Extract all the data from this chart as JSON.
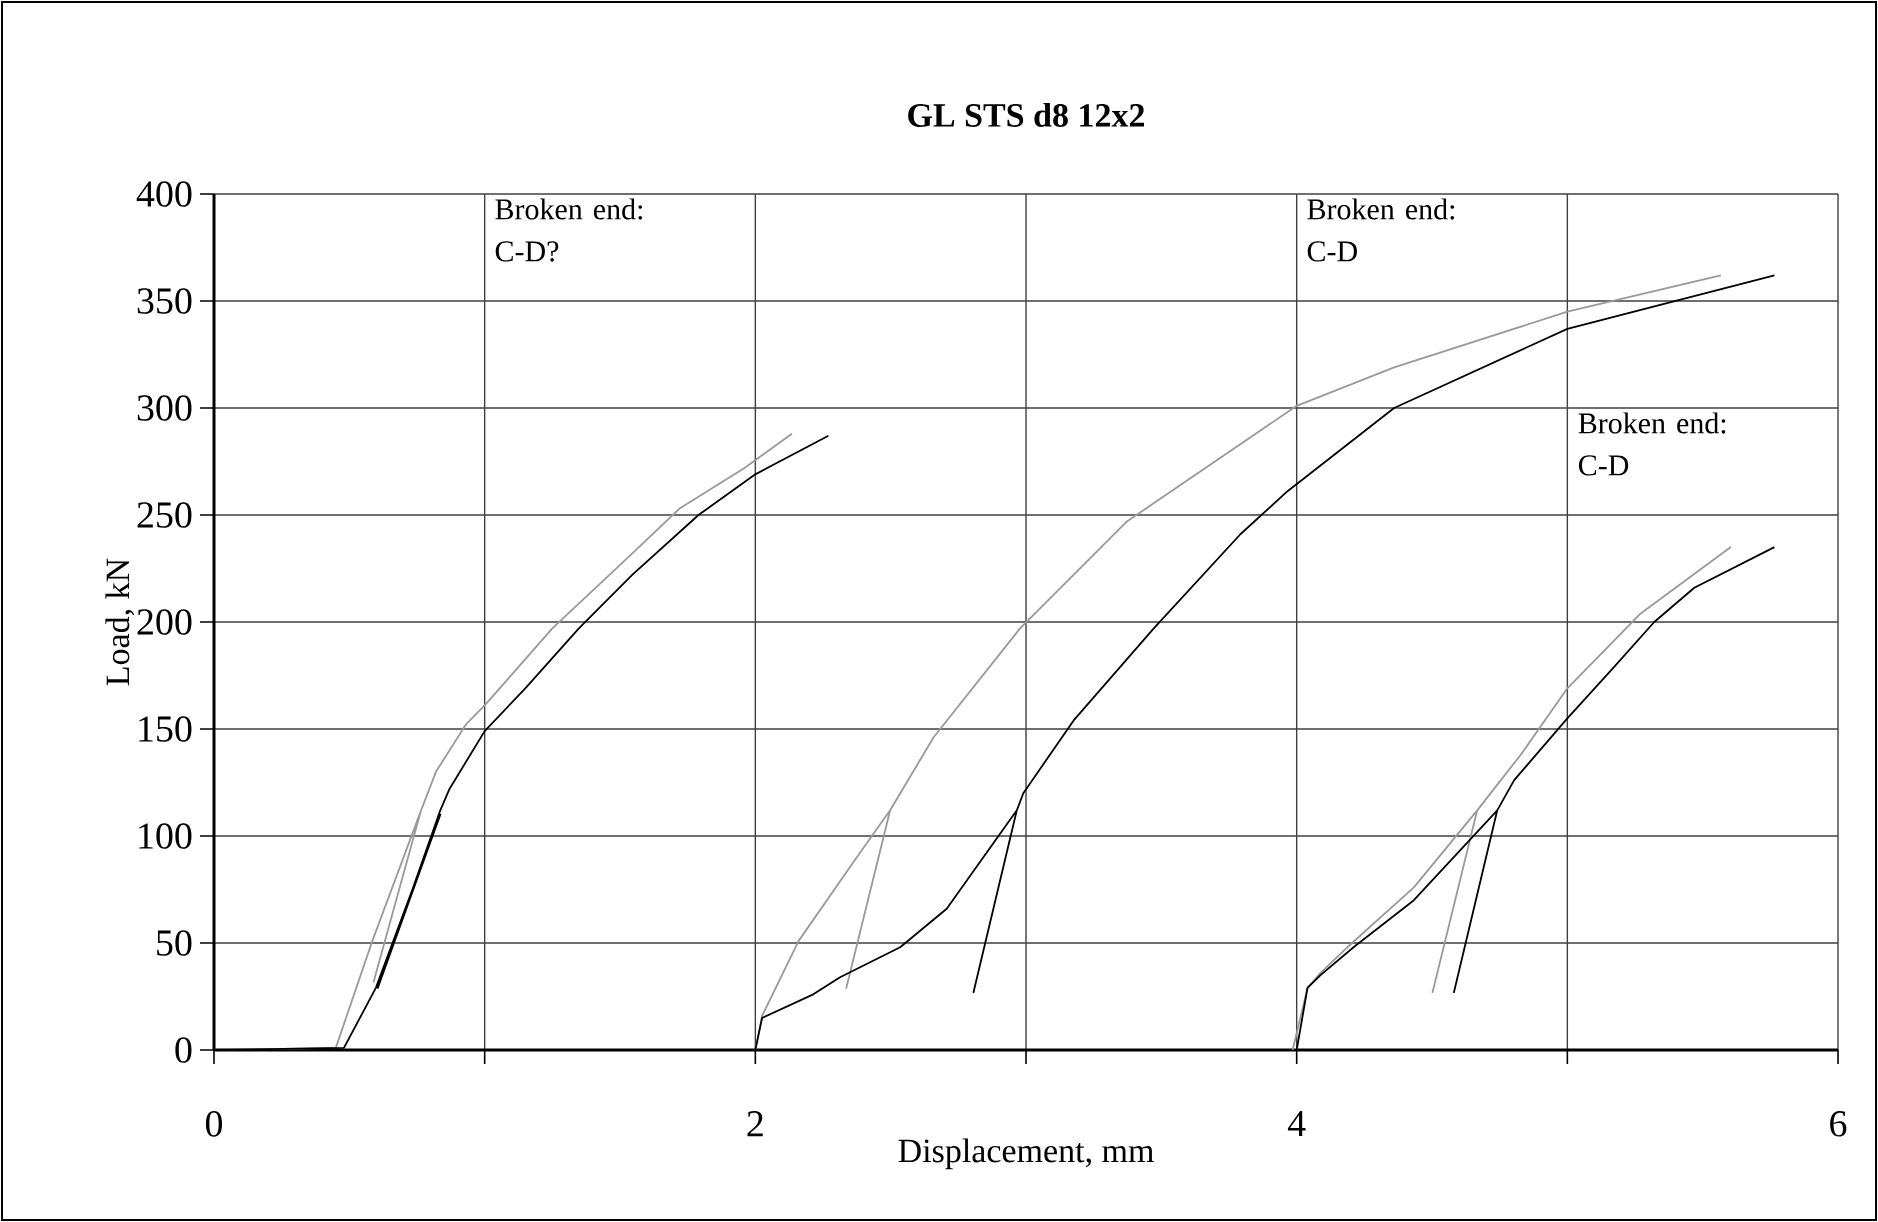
{
  "chart_data": {
    "type": "line",
    "title": "GL STS d8 12x2",
    "xlabel": "Displacement, mm",
    "ylabel": "Load, kN",
    "xlim": [
      0,
      6
    ],
    "ylim": [
      0,
      400
    ],
    "xticks": [
      0,
      {
        "value": 1,
        "label": null
      },
      2,
      {
        "value": 3,
        "label": null
      },
      4,
      {
        "value": 5,
        "label": null
      },
      6
    ],
    "yticks": [
      0,
      50,
      100,
      150,
      200,
      250,
      300,
      350,
      400
    ],
    "grid": true,
    "marker": "none",
    "line_style": "solid",
    "series": [
      {
        "color": "#999999",
        "x": [
          0,
          0.45,
          0.585,
          0.765,
          0.59,
          0.765,
          0.82,
          0.93,
          1.0,
          1.25,
          1.52,
          1.72,
          1.96,
          2.135
        ],
        "values": [
          0,
          1,
          51,
          112,
          32,
          112,
          130,
          152,
          161,
          197,
          229,
          253,
          272,
          288
        ]
      },
      {
        "color": "#000000",
        "x": [
          0,
          0.48,
          0.598,
          0.836,
          0.605,
          0.836,
          0.87,
          1.0,
          1.15,
          1.348,
          1.545,
          1.79,
          2.0,
          2.27
        ],
        "values": [
          0,
          1,
          29,
          110,
          29,
          112,
          122,
          149,
          169,
          197,
          222,
          250,
          269,
          287
        ]
      },
      {
        "color": "#999999",
        "x": [
          2,
          2.025,
          2.16,
          2.38,
          2.498,
          2.336,
          2.498,
          2.658,
          2.978,
          3.373,
          4.0,
          4.36,
          5.0,
          5.567
        ],
        "values": [
          0,
          16,
          51,
          91,
          112,
          29,
          112,
          146,
          197,
          247,
          301,
          319,
          345,
          362
        ]
      },
      {
        "color": "#000000",
        "x": [
          2,
          2.025,
          2.214,
          2.313,
          2.535,
          2.707,
          2.966,
          2.806,
          2.966,
          2.99,
          3.176,
          3.472,
          3.792,
          3.965,
          4.36,
          5.0,
          5.765
        ],
        "values": [
          0,
          15,
          26,
          34,
          48,
          66,
          112,
          27,
          112,
          120,
          154,
          197,
          241,
          261,
          300,
          337,
          362
        ]
      },
      {
        "color": "#999999",
        "x": [
          3.985,
          4.04,
          4.088,
          4.187,
          4.433,
          4.667,
          4.502,
          4.667,
          4.828,
          5.0,
          5.271,
          5.604
        ],
        "values": [
          0,
          29,
          36,
          48,
          76,
          112,
          27,
          112,
          138,
          169,
          204,
          235
        ]
      },
      {
        "color": "#000000",
        "x": [
          4.0,
          4.04,
          4.088,
          4.21,
          4.433,
          4.741,
          4.581,
          4.741,
          4.803,
          5.0,
          5.173,
          5.321,
          5.469,
          5.765
        ],
        "values": [
          0,
          29,
          35,
          48,
          70,
          112,
          27,
          112,
          126,
          155,
          179,
          200,
          216,
          235
        ]
      }
    ],
    "annotations": [
      "Broken end: C-D?",
      "Broken end: C-D",
      "Broken end: C-D"
    ]
  }
}
